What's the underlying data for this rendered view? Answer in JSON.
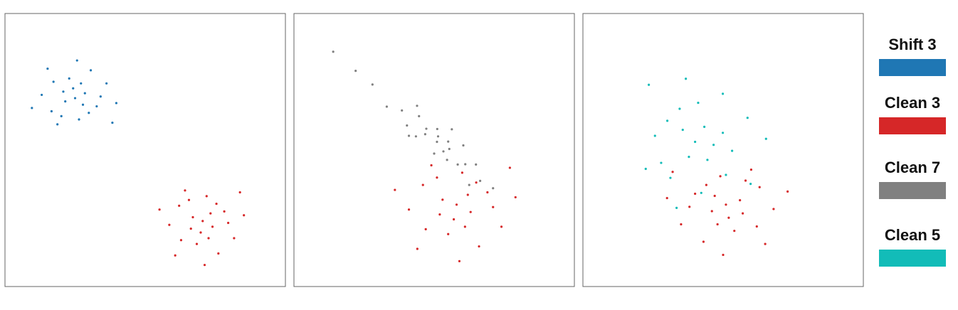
{
  "chart_data": [
    {
      "type": "scatter",
      "xlim": [
        0,
        100
      ],
      "ylim": [
        0,
        100
      ],
      "series": [
        {
          "name": "Shift 3",
          "color": "#1f77b4",
          "x": [
            25,
            28.5,
            20.8,
            32.7,
            16.6,
            26.4,
            22.9,
            36.2,
            13.1,
            30.6,
            18.7,
            39.7,
            24.3,
            27.8,
            21.5,
            34.1,
            17.3,
            29.9,
            9.6,
            25.7,
            38.3,
            15.2,
            27.1,
            20.1
          ],
          "y": [
            69,
            70.8,
            71.4,
            66,
            64.2,
            61.2,
            76.2,
            74.4,
            70.2,
            79.2,
            59.4,
            67.2,
            72.6,
            66.6,
            67.8,
            69.6,
            75,
            63.6,
            65.4,
            82.8,
            60,
            79.8,
            74.4,
            62.4
          ]
        },
        {
          "name": "Clean 3",
          "color": "#d62728",
          "x": [
            70.5,
            74,
            66.3,
            78.2,
            62.1,
            71.9,
            68.4,
            81.7,
            58.6,
            76.1,
            64.2,
            85.2,
            69.8,
            73.3,
            67,
            79.6,
            62.8,
            75.4,
            55.1,
            71.2,
            83.8,
            60.7,
            72.6,
            65.6
          ],
          "y": [
            24,
            21.9,
            21.2,
            27.5,
            29.6,
            33.1,
            15.6,
            17.7,
            22.6,
            12.1,
            35.2,
            26.1,
            19.8,
            26.8,
            25.4,
            23.3,
            17,
            30.3,
            28.2,
            7.9,
            34.5,
            11.4,
            17.7,
            31.7
          ]
        }
      ]
    },
    {
      "type": "scatter",
      "xlim": [
        0,
        100
      ],
      "ylim": [
        0,
        100
      ],
      "series": [
        {
          "name": "Clean 7",
          "color": "#808080",
          "x": [
            51,
            55.4,
            47.2,
            58.4,
            40.3,
            50,
            51.1,
            64.9,
            38.5,
            60.4,
            41,
            66.4,
            51.4,
            53.3,
            46.8,
            61.1,
            44.6,
            54.6,
            33.1,
            56.3,
            62.5,
            43.9,
            55,
            43.5,
            14,
            22,
            28,
            71
          ],
          "y": [
            53,
            50.4,
            57.8,
            44.7,
            59,
            48.7,
            57.7,
            44.7,
            64.5,
            51.7,
            55.2,
            38.7,
            55,
            49.5,
            55.8,
            44.8,
            62.4,
            46.4,
            65.9,
            57.6,
            37.2,
            66.2,
            53.1,
            55,
            86,
            79,
            74,
            36
          ]
        },
        {
          "name": "Clean 3",
          "color": "#d62728",
          "x": [
            58,
            63,
            52,
            69,
            46,
            60,
            55,
            74,
            41,
            66,
            49,
            79,
            57,
            62,
            53,
            71,
            47,
            65,
            36,
            59,
            77,
            44,
            61,
            51
          ],
          "y": [
            30,
            27.3,
            26.4,
            34.5,
            37.2,
            41.7,
            19.2,
            21.9,
            28.2,
            14.7,
            44.4,
            32.7,
            24.6,
            33.6,
            31.8,
            29.1,
            21,
            38.1,
            35.4,
            9.3,
            43.5,
            13.8,
            21.9,
            39.9
          ]
        }
      ]
    },
    {
      "type": "scatter",
      "xlim": [
        0,
        100
      ],
      "ylim": [
        0,
        100
      ],
      "series": [
        {
          "name": "Clean 5",
          "color": "#12bcb8",
          "x": [
            40,
            43.3,
            44.4,
            34.5,
            31.2,
            25.7,
            53.2,
            49.9,
            42.2,
            58.7,
            22.4,
            36.7,
            46.6,
            35.6,
            37.8,
            41.1,
            51,
            30.1,
            33.4,
            65.3,
            23.5,
            59.8,
            49.9,
            27.9
          ],
          "y": [
            53,
            58.5,
            46.4,
            65.1,
            39.8,
            55.2,
            49.7,
            70.6,
            34.3,
            61.8,
            43.1,
            76.1,
            51.9,
            57.4,
            47.5,
            67.3,
            40.9,
            60.7,
            28.8,
            54.1,
            73.9,
            37.6,
            56.3,
            45.3
          ]
        },
        {
          "name": "Clean 3",
          "color": "#d62728",
          "x": [
            51,
            46,
            57,
            40,
            63,
            49,
            54,
            35,
            68,
            43,
            60,
            30,
            52,
            47,
            56,
            38,
            62,
            44,
            73,
            50,
            32,
            65,
            48,
            58
          ],
          "y": [
            30,
            27.6,
            26.8,
            34,
            36.4,
            40.4,
            20.4,
            22.8,
            28.4,
            16.4,
            42.8,
            32.4,
            25.2,
            33.2,
            31.6,
            29.2,
            22,
            37.2,
            34.8,
            11.6,
            42,
            15.6,
            22.8,
            38.8
          ]
        }
      ]
    }
  ]
}
